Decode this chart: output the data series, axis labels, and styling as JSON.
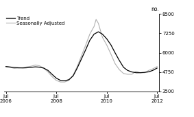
{
  "ylabel": "no.",
  "ylim": [
    3500,
    8500
  ],
  "yticks": [
    3500,
    4750,
    6000,
    7250,
    8500
  ],
  "ytick_labels": [
    "3500",
    "4750",
    "6000",
    "7250",
    "8500"
  ],
  "xlim_start": 2006.42,
  "xlim_end": 2012.58,
  "xtick_positions": [
    2006.5,
    2008.5,
    2010.5,
    2012.5
  ],
  "xtick_labels_line1": [
    "Jul",
    "Jul",
    "Jul",
    "Jul"
  ],
  "xtick_labels_line2": [
    "2006",
    "2008",
    "2010",
    "2012"
  ],
  "trend_color": "#000000",
  "seasonal_color": "#b0b0b0",
  "legend_items": [
    "Trend",
    "Seasonally Adjusted"
  ],
  "background_color": "#ffffff",
  "trend_x": [
    2006.5,
    2006.67,
    2006.83,
    2007.0,
    2007.17,
    2007.33,
    2007.5,
    2007.67,
    2007.83,
    2008.0,
    2008.17,
    2008.33,
    2008.5,
    2008.67,
    2008.83,
    2009.0,
    2009.17,
    2009.33,
    2009.5,
    2009.67,
    2009.83,
    2010.0,
    2010.17,
    2010.33,
    2010.5,
    2010.67,
    2010.83,
    2011.0,
    2011.17,
    2011.33,
    2011.5,
    2011.67,
    2011.83,
    2012.0,
    2012.17,
    2012.33,
    2012.5
  ],
  "trend_y": [
    5100,
    5070,
    5040,
    5020,
    5010,
    5020,
    5050,
    5080,
    5060,
    5000,
    4850,
    4600,
    4350,
    4200,
    4180,
    4250,
    4500,
    5000,
    5600,
    6200,
    6800,
    7200,
    7350,
    7200,
    6900,
    6500,
    6000,
    5500,
    5050,
    4850,
    4750,
    4700,
    4700,
    4720,
    4760,
    4850,
    5000
  ],
  "seasonal_x": [
    2006.5,
    2006.67,
    2006.83,
    2007.0,
    2007.17,
    2007.33,
    2007.5,
    2007.67,
    2007.83,
    2008.0,
    2008.17,
    2008.33,
    2008.5,
    2008.67,
    2008.83,
    2009.0,
    2009.17,
    2009.33,
    2009.5,
    2009.67,
    2009.83,
    2010.0,
    2010.08,
    2010.17,
    2010.33,
    2010.5,
    2010.67,
    2010.83,
    2011.0,
    2011.17,
    2011.33,
    2011.5,
    2011.67,
    2011.83,
    2012.0,
    2012.17,
    2012.33,
    2012.5
  ],
  "seasonal_y": [
    5100,
    5050,
    4980,
    5000,
    5030,
    5080,
    5120,
    5200,
    5150,
    5000,
    4750,
    4450,
    4200,
    4100,
    4100,
    4200,
    4550,
    5100,
    5800,
    6500,
    7200,
    7700,
    8150,
    7900,
    7000,
    6500,
    5900,
    5300,
    4900,
    4650,
    4600,
    4600,
    4800,
    4700,
    4700,
    4850,
    4950,
    5100
  ]
}
